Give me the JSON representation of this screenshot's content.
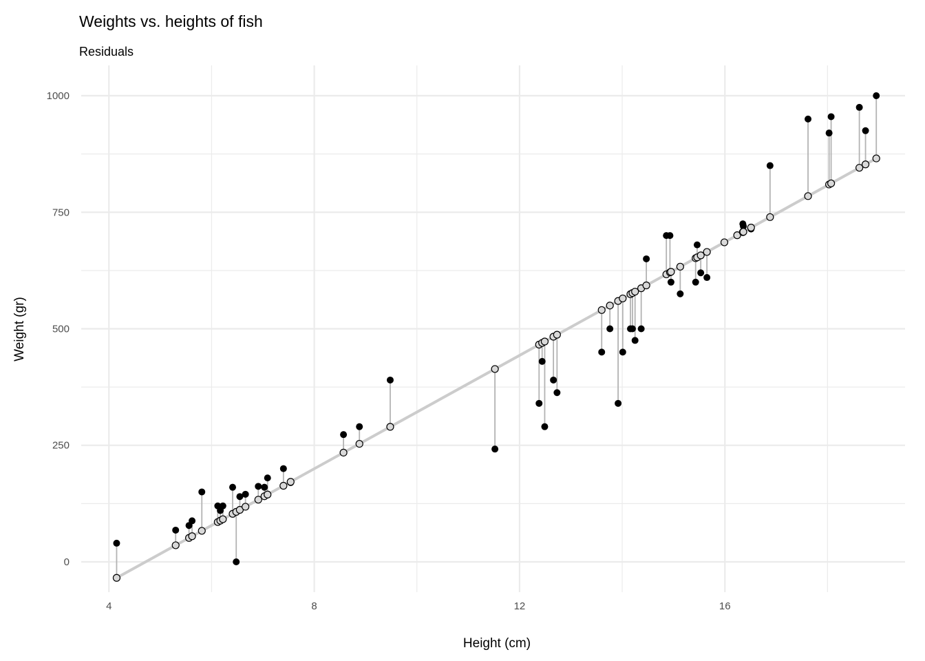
{
  "chart_data": {
    "type": "scatter",
    "title": "Weights vs. heights of fish",
    "subtitle": "Residuals",
    "xlabel": "Height (cm)",
    "ylabel": "Weight (gr)",
    "xlim": [
      3.46,
      19.51
    ],
    "ylim": [
      -65,
      1065
    ],
    "xticks": [
      4,
      8,
      12,
      16
    ],
    "xtick_labels": [
      "4",
      "8",
      "12",
      "16"
    ],
    "yticks": [
      0,
      250,
      500,
      750,
      1000
    ],
    "ytick_labels": [
      "0",
      "250",
      "500",
      "750",
      "1000"
    ],
    "x_minor": [
      6,
      10,
      14,
      18
    ],
    "y_minor": [
      125,
      375,
      625,
      875
    ],
    "grid": true,
    "fit": {
      "slope": 60.8,
      "intercept": -286.7
    },
    "points": [
      {
        "x": 4.15,
        "y": 40
      },
      {
        "x": 5.3,
        "y": 68
      },
      {
        "x": 5.56,
        "y": 78
      },
      {
        "x": 5.62,
        "y": 88
      },
      {
        "x": 5.81,
        "y": 150
      },
      {
        "x": 6.12,
        "y": 120
      },
      {
        "x": 6.17,
        "y": 110
      },
      {
        "x": 6.22,
        "y": 120
      },
      {
        "x": 6.41,
        "y": 160
      },
      {
        "x": 6.48,
        "y": 0
      },
      {
        "x": 6.55,
        "y": 140
      },
      {
        "x": 6.66,
        "y": 145
      },
      {
        "x": 6.91,
        "y": 162
      },
      {
        "x": 7.03,
        "y": 160
      },
      {
        "x": 7.09,
        "y": 180
      },
      {
        "x": 7.4,
        "y": 200
      },
      {
        "x": 7.54,
        "y": 170
      },
      {
        "x": 8.57,
        "y": 273
      },
      {
        "x": 8.88,
        "y": 290
      },
      {
        "x": 9.48,
        "y": 390
      },
      {
        "x": 11.52,
        "y": 242
      },
      {
        "x": 12.38,
        "y": 340
      },
      {
        "x": 12.44,
        "y": 430
      },
      {
        "x": 12.49,
        "y": 290
      },
      {
        "x": 12.66,
        "y": 390
      },
      {
        "x": 12.73,
        "y": 363
      },
      {
        "x": 13.6,
        "y": 450
      },
      {
        "x": 13.76,
        "y": 500
      },
      {
        "x": 13.92,
        "y": 340
      },
      {
        "x": 14.01,
        "y": 450
      },
      {
        "x": 14.16,
        "y": 500
      },
      {
        "x": 14.2,
        "y": 500
      },
      {
        "x": 14.25,
        "y": 475
      },
      {
        "x": 14.37,
        "y": 500
      },
      {
        "x": 14.47,
        "y": 650
      },
      {
        "x": 14.86,
        "y": 700
      },
      {
        "x": 14.93,
        "y": 700
      },
      {
        "x": 14.95,
        "y": 600
      },
      {
        "x": 15.13,
        "y": 575
      },
      {
        "x": 15.43,
        "y": 600
      },
      {
        "x": 15.46,
        "y": 680
      },
      {
        "x": 15.53,
        "y": 620
      },
      {
        "x": 15.65,
        "y": 610
      },
      {
        "x": 15.99,
        "y": 685
      },
      {
        "x": 16.24,
        "y": 700
      },
      {
        "x": 16.35,
        "y": 725
      },
      {
        "x": 16.36,
        "y": 720
      },
      {
        "x": 16.51,
        "y": 714
      },
      {
        "x": 16.88,
        "y": 850
      },
      {
        "x": 17.62,
        "y": 950
      },
      {
        "x": 18.03,
        "y": 920
      },
      {
        "x": 18.07,
        "y": 955
      },
      {
        "x": 18.62,
        "y": 975
      },
      {
        "x": 18.74,
        "y": 925
      },
      {
        "x": 18.95,
        "y": 1000
      }
    ],
    "colors": {
      "grid": "#ebebeb",
      "fit_line": "#cccccc",
      "segment": "#b3b3b3",
      "observed": "#000000",
      "fitted_fill": "#d9d9d9"
    }
  }
}
